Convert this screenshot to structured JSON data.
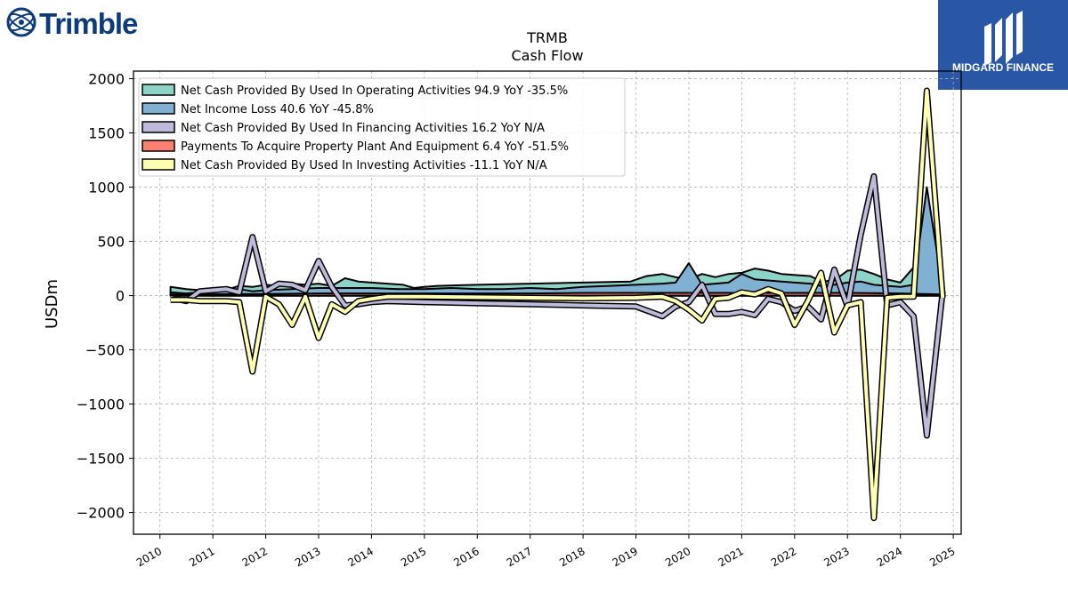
{
  "brand_left": {
    "name": "Trimble",
    "icon": "trimble-globe-icon",
    "color": "#0c3b7c"
  },
  "brand_right": {
    "name": "MIDGARD FINANCE",
    "icon": "midgard-monogram-icon",
    "bg": "#2a56a6"
  },
  "chart_data": {
    "type": "line",
    "title": "TRMB",
    "subtitle": "Cash Flow",
    "ylabel": "USDm",
    "xlabel": "",
    "xlim": [
      2009.5,
      2025.15
    ],
    "ylim": [
      -2200,
      2070
    ],
    "xticks": [
      2010,
      2011,
      2012,
      2013,
      2014,
      2015,
      2016,
      2017,
      2018,
      2019,
      2020,
      2021,
      2022,
      2023,
      2024,
      2025
    ],
    "yticks": [
      -2000,
      -1500,
      -1000,
      -500,
      0,
      500,
      1000,
      1500,
      2000
    ],
    "grid": true,
    "legend_position": "top-left",
    "series": [
      {
        "name": "Net Cash Provided By Used In Operating Activities",
        "legend_label": "Net Cash Provided By Used In Operating Activities  94.9 YoY -35.5%",
        "color": "#8dd3c7",
        "style": "band",
        "points": [
          [
            2010.2,
            80
          ],
          [
            2010.5,
            60
          ],
          [
            2010.75,
            50
          ],
          [
            2011.0,
            70
          ],
          [
            2011.3,
            60
          ],
          [
            2011.5,
            90
          ],
          [
            2011.75,
            80
          ],
          [
            2012.0,
            100
          ],
          [
            2012.25,
            90
          ],
          [
            2012.5,
            110
          ],
          [
            2012.75,
            100
          ],
          [
            2013.0,
            110
          ],
          [
            2013.25,
            90
          ],
          [
            2013.5,
            160
          ],
          [
            2013.75,
            130
          ],
          [
            2014.0,
            120
          ],
          [
            2014.3,
            110
          ],
          [
            2014.6,
            100
          ],
          [
            2014.8,
            70
          ],
          [
            2015.0,
            80
          ],
          [
            2015.25,
            90
          ],
          [
            2015.6,
            95
          ],
          [
            2016.0,
            100
          ],
          [
            2016.5,
            105
          ],
          [
            2017.0,
            110
          ],
          [
            2017.5,
            115
          ],
          [
            2018.0,
            120
          ],
          [
            2018.5,
            125
          ],
          [
            2018.9,
            130
          ],
          [
            2019.2,
            180
          ],
          [
            2019.5,
            200
          ],
          [
            2019.75,
            170
          ],
          [
            2020.0,
            150
          ],
          [
            2020.25,
            200
          ],
          [
            2020.5,
            170
          ],
          [
            2020.75,
            200
          ],
          [
            2021.0,
            210
          ],
          [
            2021.25,
            250
          ],
          [
            2021.5,
            230
          ],
          [
            2021.75,
            200
          ],
          [
            2022.0,
            190
          ],
          [
            2022.3,
            180
          ],
          [
            2022.5,
            130
          ],
          [
            2022.75,
            140
          ],
          [
            2023.0,
            230
          ],
          [
            2023.25,
            240
          ],
          [
            2023.5,
            200
          ],
          [
            2023.75,
            150
          ],
          [
            2024.0,
            120
          ],
          [
            2024.25,
            260
          ],
          [
            2024.5,
            130
          ],
          [
            2024.8,
            120
          ]
        ]
      },
      {
        "name": "Net Income Loss",
        "legend_label": "Net Income Loss  40.6 YoY -45.8%",
        "color": "#80b1d3",
        "style": "band",
        "points": [
          [
            2010.2,
            30
          ],
          [
            2010.5,
            20
          ],
          [
            2010.75,
            30
          ],
          [
            2011.0,
            40
          ],
          [
            2011.3,
            50
          ],
          [
            2011.5,
            60
          ],
          [
            2011.75,
            40
          ],
          [
            2012.0,
            50
          ],
          [
            2012.5,
            60
          ],
          [
            2013.0,
            70
          ],
          [
            2013.5,
            70
          ],
          [
            2014.0,
            70
          ],
          [
            2014.5,
            60
          ],
          [
            2015.0,
            60
          ],
          [
            2015.5,
            70
          ],
          [
            2016.0,
            60
          ],
          [
            2016.5,
            60
          ],
          [
            2017.0,
            70
          ],
          [
            2017.5,
            60
          ],
          [
            2018.0,
            80
          ],
          [
            2018.5,
            90
          ],
          [
            2019.0,
            100
          ],
          [
            2019.5,
            110
          ],
          [
            2019.75,
            120
          ],
          [
            2020.0,
            300
          ],
          [
            2020.25,
            100
          ],
          [
            2020.5,
            110
          ],
          [
            2020.75,
            120
          ],
          [
            2021.0,
            200
          ],
          [
            2021.25,
            150
          ],
          [
            2021.5,
            140
          ],
          [
            2021.75,
            130
          ],
          [
            2022.0,
            120
          ],
          [
            2022.3,
            110
          ],
          [
            2022.5,
            90
          ],
          [
            2022.75,
            100
          ],
          [
            2023.0,
            120
          ],
          [
            2023.25,
            130
          ],
          [
            2023.5,
            100
          ],
          [
            2023.75,
            90
          ],
          [
            2024.0,
            80
          ],
          [
            2024.25,
            100
          ],
          [
            2024.5,
            1000
          ],
          [
            2024.8,
            60
          ]
        ]
      },
      {
        "name": "Net Cash Provided By Used In Financing Activities",
        "legend_label": "Net Cash Provided By Used In Financing Activities  16.2 YoY N/A",
        "color": "#bebada",
        "style": "line",
        "points": [
          [
            2010.2,
            -20
          ],
          [
            2010.5,
            -50
          ],
          [
            2010.75,
            40
          ],
          [
            2011.0,
            50
          ],
          [
            2011.25,
            60
          ],
          [
            2011.5,
            30
          ],
          [
            2011.75,
            540
          ],
          [
            2012.0,
            40
          ],
          [
            2012.25,
            110
          ],
          [
            2012.5,
            100
          ],
          [
            2012.75,
            50
          ],
          [
            2013.0,
            320
          ],
          [
            2013.25,
            80
          ],
          [
            2013.5,
            -90
          ],
          [
            2013.75,
            -80
          ],
          [
            2014.0,
            -60
          ],
          [
            2014.3,
            -50
          ],
          [
            2015.0,
            -60
          ],
          [
            2016.0,
            -70
          ],
          [
            2017.0,
            -80
          ],
          [
            2018.0,
            -90
          ],
          [
            2019.0,
            -100
          ],
          [
            2019.5,
            -190
          ],
          [
            2019.75,
            -100
          ],
          [
            2020.0,
            -60
          ],
          [
            2020.25,
            100
          ],
          [
            2020.5,
            -170
          ],
          [
            2020.75,
            -170
          ],
          [
            2021.0,
            -150
          ],
          [
            2021.25,
            -180
          ],
          [
            2021.5,
            -30
          ],
          [
            2021.75,
            -60
          ],
          [
            2022.0,
            -140
          ],
          [
            2022.25,
            -100
          ],
          [
            2022.5,
            -220
          ],
          [
            2022.75,
            240
          ],
          [
            2023.0,
            -100
          ],
          [
            2023.25,
            560
          ],
          [
            2023.5,
            1100
          ],
          [
            2023.75,
            -90
          ],
          [
            2024.0,
            -60
          ],
          [
            2024.25,
            -190
          ],
          [
            2024.5,
            -1290
          ],
          [
            2024.8,
            40
          ]
        ]
      },
      {
        "name": "Payments To Acquire Property Plant And Equipment",
        "legend_label": "Payments To Acquire Property Plant And Equipment  6.4 YoY -51.5%",
        "color": "#fb8072",
        "style": "band",
        "points": [
          [
            2010.2,
            10
          ],
          [
            2011.0,
            12
          ],
          [
            2012.0,
            15
          ],
          [
            2013.0,
            20
          ],
          [
            2014.0,
            20
          ],
          [
            2015.0,
            20
          ],
          [
            2016.0,
            20
          ],
          [
            2017.0,
            20
          ],
          [
            2018.0,
            25
          ],
          [
            2019.0,
            25
          ],
          [
            2020.0,
            25
          ],
          [
            2021.0,
            25
          ],
          [
            2022.0,
            25
          ],
          [
            2023.0,
            25
          ],
          [
            2024.0,
            20
          ],
          [
            2024.8,
            10
          ]
        ]
      },
      {
        "name": "Net Cash Provided By Used In Investing Activities",
        "legend_label": "Net Cash Provided By Used In Investing Activities  -11.1 YoY N/A",
        "color": "#ffffb3",
        "style": "line",
        "points": [
          [
            2010.2,
            -40
          ],
          [
            2010.5,
            -40
          ],
          [
            2010.75,
            -50
          ],
          [
            2011.0,
            -50
          ],
          [
            2011.25,
            -50
          ],
          [
            2011.5,
            -60
          ],
          [
            2011.75,
            -700
          ],
          [
            2012.0,
            -10
          ],
          [
            2012.25,
            -80
          ],
          [
            2012.5,
            -270
          ],
          [
            2012.75,
            -10
          ],
          [
            2013.0,
            -390
          ],
          [
            2013.25,
            -80
          ],
          [
            2013.5,
            -150
          ],
          [
            2013.75,
            -50
          ],
          [
            2014.0,
            -30
          ],
          [
            2014.3,
            -10
          ],
          [
            2015.0,
            -10
          ],
          [
            2016.0,
            -15
          ],
          [
            2017.0,
            -20
          ],
          [
            2018.0,
            -25
          ],
          [
            2019.0,
            -20
          ],
          [
            2019.5,
            -10
          ],
          [
            2019.75,
            -50
          ],
          [
            2020.0,
            -130
          ],
          [
            2020.25,
            -230
          ],
          [
            2020.5,
            -30
          ],
          [
            2020.75,
            -20
          ],
          [
            2021.0,
            30
          ],
          [
            2021.25,
            10
          ],
          [
            2021.5,
            60
          ],
          [
            2021.75,
            20
          ],
          [
            2022.0,
            -270
          ],
          [
            2022.25,
            -50
          ],
          [
            2022.5,
            210
          ],
          [
            2022.75,
            -340
          ],
          [
            2023.0,
            -90
          ],
          [
            2023.25,
            -60
          ],
          [
            2023.5,
            -2050
          ],
          [
            2023.75,
            -20
          ],
          [
            2024.0,
            -10
          ],
          [
            2024.25,
            -10
          ],
          [
            2024.5,
            1890
          ],
          [
            2024.8,
            -20
          ]
        ]
      }
    ]
  }
}
